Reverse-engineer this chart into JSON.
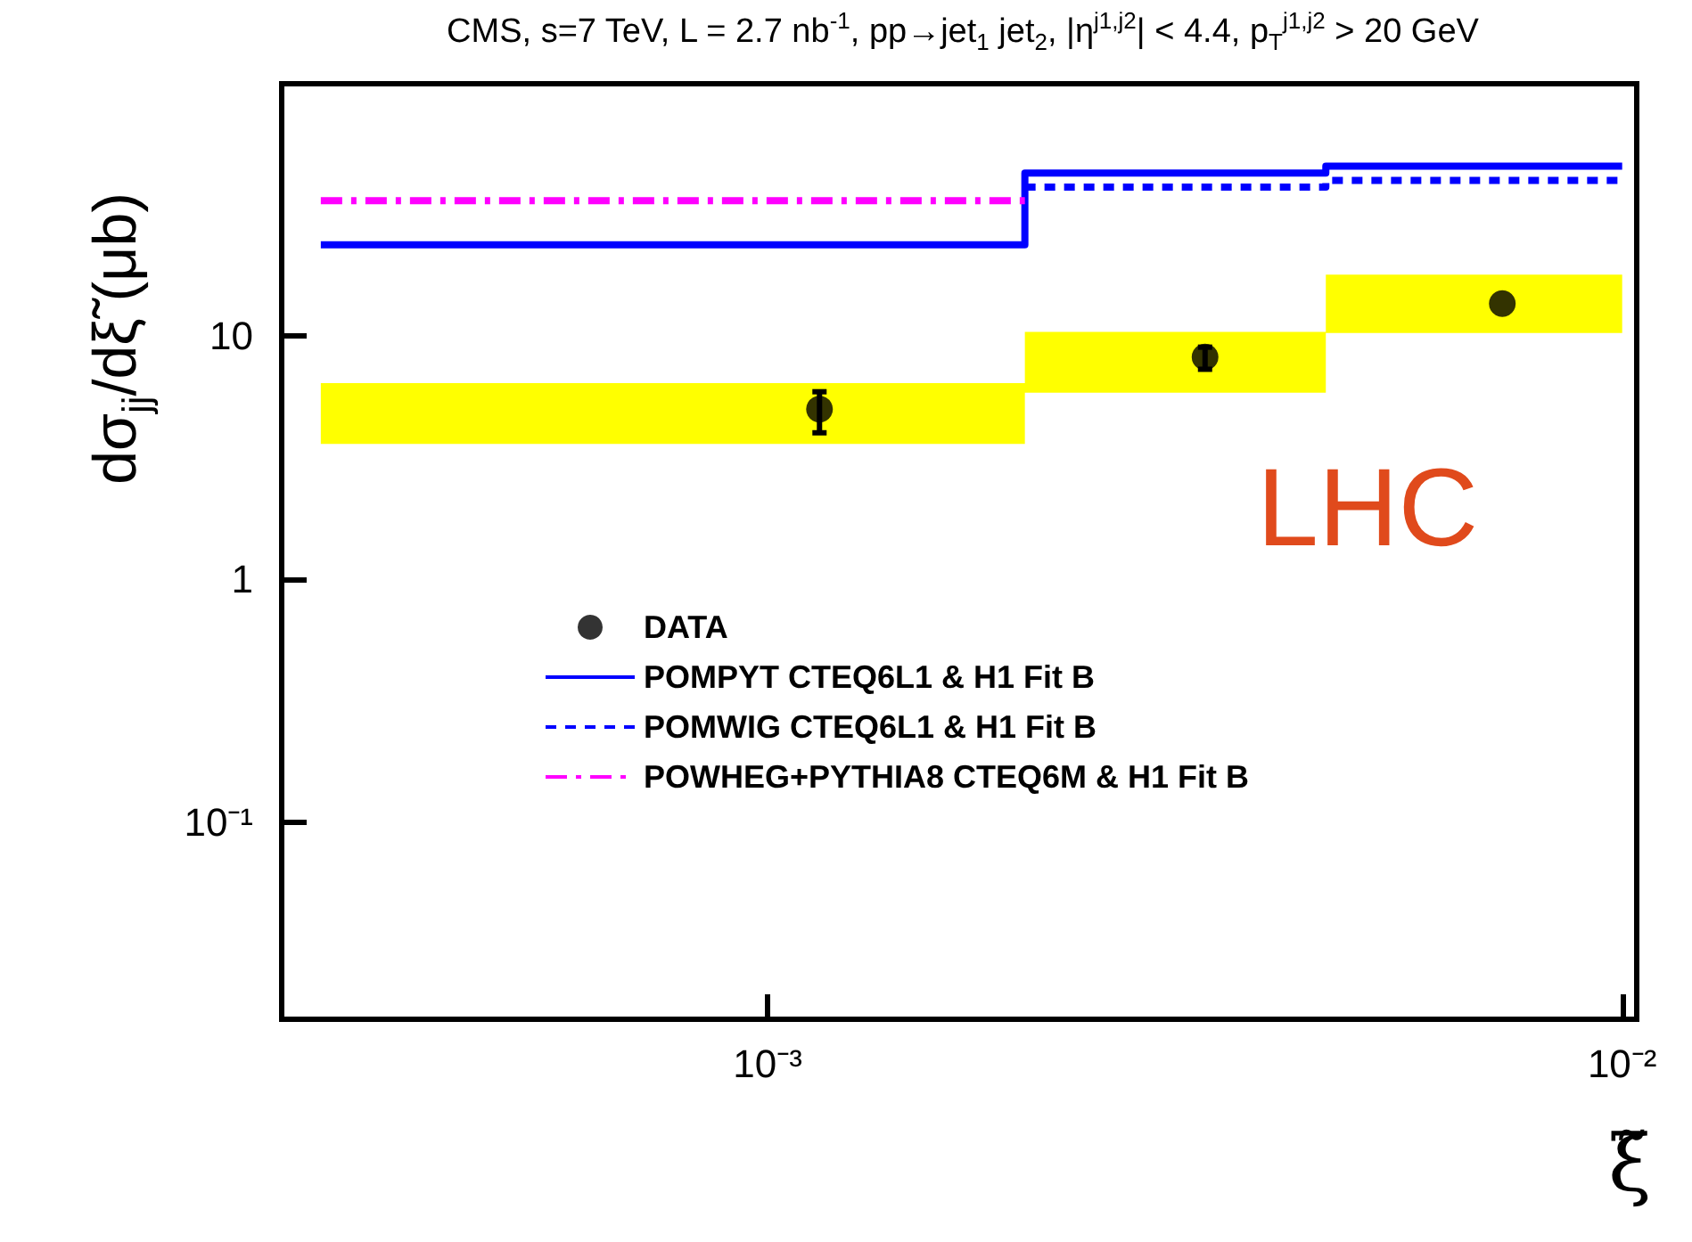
{
  "chart_data": {
    "type": "scatter",
    "title": "CMS,    s=7 TeV, L = 2.7 nb$^{-1}$, pp→jet$_{1}$ jet$_{2}$,  |η$^{j1,j2}$| < 4.4,  p$_{T}$$^{j1,j2}$ > 20 GeV",
    "xlabel": "ξ̃",
    "ylabel": "dσ$_{jj}$/dξ̃ (μb)",
    "annotations": [
      "LHC"
    ],
    "log": "xy",
    "xlim": [
      0.00027,
      0.0104
    ],
    "xticks": [
      {
        "value": 0.001,
        "label": "10⁻³"
      },
      {
        "value": 0.01,
        "label": "10⁻²"
      }
    ],
    "ylim": [
      0.0155,
      109
    ],
    "yticks": [
      {
        "value": 0.1,
        "label": "10⁻¹"
      },
      1,
      10
    ],
    "grid": false,
    "legend": "left",
    "series": [
      {
        "type": "area",
        "color": "#ffff00",
        "x": [
          0.0003,
          0.002,
          0.002,
          0.0045,
          0.0045,
          0.01
        ],
        "values": [
          null,
          null,
          null,
          null,
          null,
          null
        ],
        "lower": [
          3.6,
          3.6,
          5.85,
          5.85,
          10.3,
          10.3
        ],
        "upper": [
          6.4,
          6.4,
          10.4,
          10.4,
          17.9,
          17.9
        ]
      },
      {
        "type": "line",
        "name": "POMPYT CTEQ6L1 & H1 Fit B",
        "color": "#0000ff",
        "line_style": "solid",
        "marker": "none",
        "x": [
          0.0003,
          0.002,
          0.002,
          0.0045,
          0.0045,
          0.01
        ],
        "values": [
          23.7,
          23.7,
          46.8,
          46.8,
          50,
          50
        ]
      },
      {
        "type": "line",
        "name": "POMWIG CTEQ6L1 & H1 Fit B",
        "color": "#0000ff",
        "line_style": "dotted",
        "marker": "none",
        "x": [
          0.002,
          0.0045,
          0.0045,
          0.01
        ],
        "values": [
          41,
          41,
          43.6,
          43.6
        ]
      },
      {
        "type": "line",
        "name": "POWHEG+PYTHIA8 CTEQ6M & H1 Fit B",
        "color": "#ff00ff",
        "line_style": "dashed",
        "marker": "none",
        "x": [
          0.0003,
          0.002
        ],
        "values": [
          36,
          36
        ]
      },
      {
        "name": "DATA",
        "color": "#000000",
        "marker": "circle",
        "x": [
          0.00115,
          0.00325,
          0.00724
        ],
        "values": [
          5.0,
          8.2,
          13.6
        ],
        "errors": [
          [
            4.0,
            5.9
          ],
          [
            7.3,
            9.0
          ],
          null
        ]
      }
    ]
  }
}
